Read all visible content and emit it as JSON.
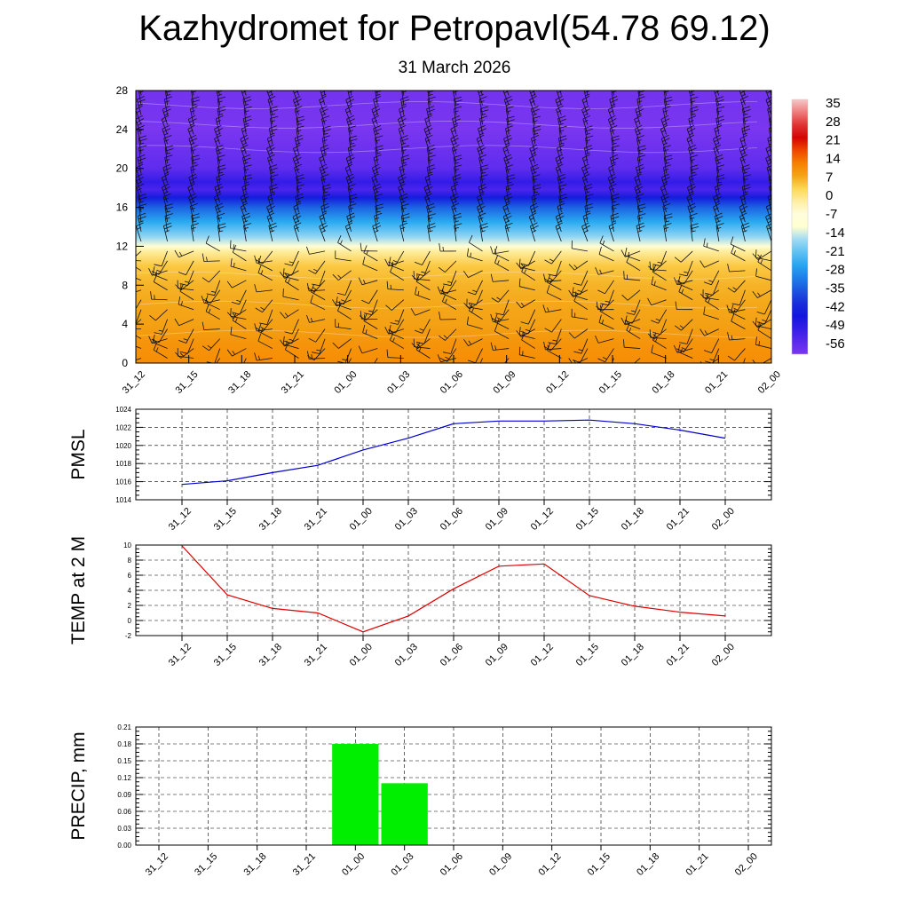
{
  "page": {
    "title": "Kazhydromet for Petropavl(54.78 69.12)",
    "date": "31 March 2026"
  },
  "chart_data": [
    {
      "id": "profile",
      "type": "heatmap",
      "description_of_axes": "time vs height",
      "x": [
        "31_12",
        "31_15",
        "31_18",
        "31_21",
        "01_00",
        "01_03",
        "01_06",
        "01_09",
        "01_12",
        "01_15",
        "01_18",
        "01_21",
        "02_00"
      ],
      "ylim": [
        0,
        28
      ],
      "yticks": [
        0,
        4,
        8,
        12,
        16,
        20,
        24,
        28
      ],
      "colorbar_labels": [
        35,
        28,
        21,
        14,
        7,
        0,
        -7,
        -14,
        -21,
        -28,
        -35,
        -42,
        -49,
        -56
      ],
      "temperature_by_height": [
        {
          "h": 0,
          "t": 9
        },
        {
          "h": 2,
          "t": 8
        },
        {
          "h": 4,
          "t": 6
        },
        {
          "h": 6,
          "t": 5
        },
        {
          "h": 8,
          "t": 4
        },
        {
          "h": 10,
          "t": 2
        },
        {
          "h": 11.5,
          "t": -4
        },
        {
          "h": 12,
          "t": -12
        },
        {
          "h": 13,
          "t": -20
        },
        {
          "h": 14.5,
          "t": -28
        },
        {
          "h": 16,
          "t": -37
        },
        {
          "h": 17,
          "t": -47
        },
        {
          "h": 17.8,
          "t": -56
        },
        {
          "h": 18.6,
          "t": -53
        },
        {
          "h": 20,
          "t": -59
        },
        {
          "h": 22,
          "t": -61
        },
        {
          "h": 24,
          "t": -64
        },
        {
          "h": 28,
          "t": -62
        }
      ],
      "wind_barbs": true,
      "colors": {
        "warm": "#f39b10",
        "cold": "#6a2bef",
        "freezing": "#ffffd0"
      }
    },
    {
      "id": "pmsl",
      "type": "line",
      "ylabel": "PMSL",
      "x": [
        "31_12",
        "31_15",
        "31_18",
        "31_21",
        "01_00",
        "01_03",
        "01_06",
        "01_09",
        "01_12",
        "01_15",
        "01_18",
        "01_21",
        "02_00"
      ],
      "values": [
        1015.7,
        1016.1,
        1017.0,
        1017.8,
        1019.5,
        1020.8,
        1022.4,
        1022.7,
        1022.7,
        1022.8,
        1022.4,
        1021.7,
        1020.8
      ],
      "ylim": [
        1014,
        1024
      ],
      "yticks": [
        1014,
        1016,
        1018,
        1020,
        1022,
        1024
      ],
      "color": "#0000cc",
      "grid": true
    },
    {
      "id": "temp2m",
      "type": "line",
      "ylabel": "TEMP at 2 M",
      "x": [
        "31_12",
        "31_15",
        "31_18",
        "31_21",
        "01_00",
        "01_03",
        "01_06",
        "01_09",
        "01_12",
        "01_15",
        "01_18",
        "01_21",
        "02_00"
      ],
      "values": [
        9.9,
        3.4,
        1.6,
        1.0,
        -1.5,
        0.6,
        4.2,
        7.2,
        7.5,
        3.3,
        1.9,
        1.1,
        0.6
      ],
      "ylim": [
        -2,
        10
      ],
      "yticks": [
        -2,
        0,
        2,
        4,
        6,
        8,
        10
      ],
      "color": "#dd0000",
      "grid": true
    },
    {
      "id": "precip",
      "type": "bar",
      "ylabel": "PRECIP, mm",
      "x": [
        "31_12",
        "31_15",
        "31_18",
        "31_21",
        "01_00",
        "01_03",
        "01_06",
        "01_09",
        "01_12",
        "01_15",
        "01_18",
        "01_21",
        "02_00"
      ],
      "values": [
        0,
        0,
        0,
        0,
        0.18,
        0.11,
        0,
        0,
        0,
        0,
        0,
        0,
        0
      ],
      "ylim": [
        0,
        0.21
      ],
      "yticks": [
        "0.00",
        "0.03",
        "0.06",
        "0.09",
        "0.12",
        "0.15",
        "0.18",
        "0.21"
      ],
      "color": "#00ee00",
      "grid": true
    }
  ]
}
